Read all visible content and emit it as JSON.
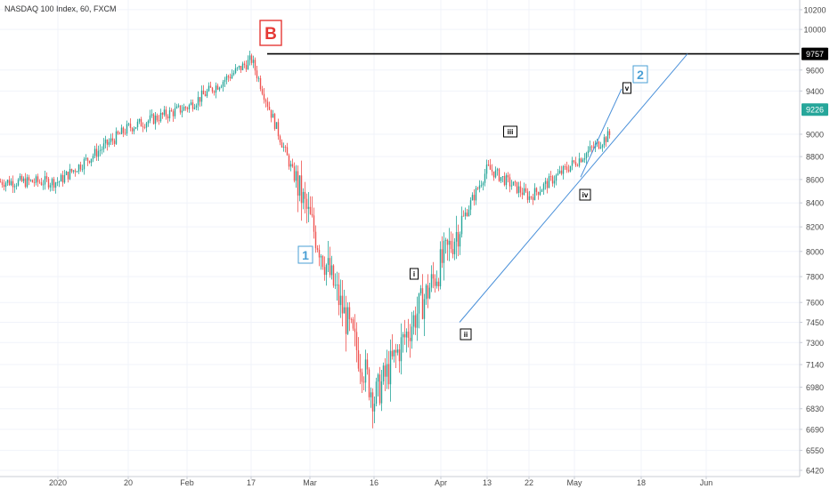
{
  "chart_data": {
    "type": "candlestick",
    "title": "NASDAQ 100 Index, 60, FXCM",
    "x_ticks": [
      "2020",
      "20",
      "Feb",
      "17",
      "Mar",
      "16",
      "Apr",
      "13",
      "22",
      "May",
      "18",
      "Jun"
    ],
    "y_ticks": [
      10200,
      10000,
      9757,
      9600,
      9400,
      9226,
      9000,
      8800,
      8600,
      8400,
      8200,
      8000,
      7800,
      7600,
      7450,
      7300,
      7140,
      6980,
      6830,
      6690,
      6550,
      6420
    ],
    "y_scale": "log",
    "y_range": [
      6380,
      10300
    ],
    "last_price": 9226,
    "resistance_level": 9757,
    "colors": {
      "up": "#26a69a",
      "down": "#ef5350",
      "trendline": "#4a90d9",
      "resistance": "#000000",
      "label_red": "#e53935",
      "label_blue": "#4a9fd5"
    },
    "path_points": [
      {
        "x": "2020",
        "y": 8580
      },
      {
        "x": "20",
        "y": 9060
      },
      {
        "x": "Feb",
        "y": 9250
      },
      {
        "x": "17",
        "y": 9700
      },
      {
        "x": "Mar",
        "y": 8250
      },
      {
        "x": "16",
        "y": 6900
      },
      {
        "x": "Apr",
        "y": 7900
      },
      {
        "x": "13",
        "y": 8700
      },
      {
        "x": "22",
        "y": 8450
      },
      {
        "x": "May",
        "y": 8750
      },
      {
        "x": "18",
        "y": 9226
      }
    ],
    "wave_labels": [
      {
        "text": "B",
        "style": "red"
      },
      {
        "text": "1",
        "style": "blue"
      },
      {
        "text": "2",
        "style": "blue"
      },
      {
        "text": "i",
        "style": "box"
      },
      {
        "text": "ii",
        "style": "box"
      },
      {
        "text": "iii",
        "style": "box"
      },
      {
        "text": "iv",
        "style": "box"
      },
      {
        "text": "v",
        "style": "box"
      }
    ]
  }
}
